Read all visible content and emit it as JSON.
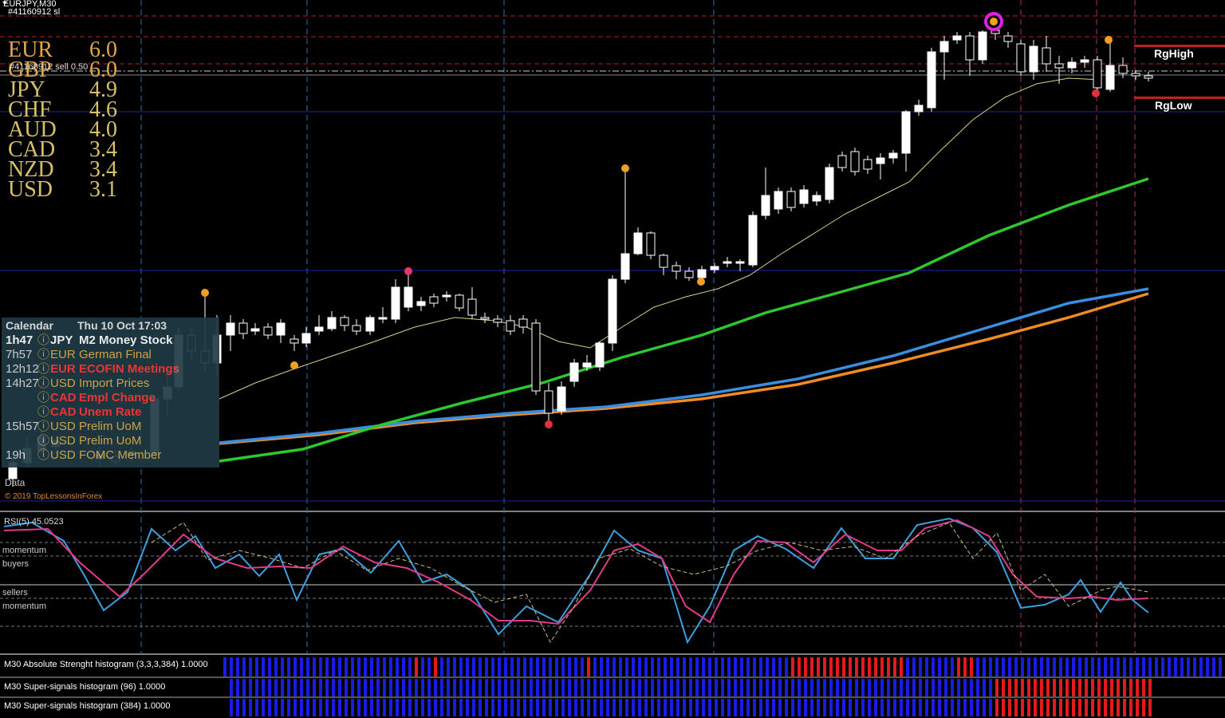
{
  "header": {
    "symbol": "EURJPY,M30",
    "account_line": "#41160912 sl"
  },
  "order_label": "#41160912 sell 0.50",
  "currency_strength": [
    {
      "currency": "EUR",
      "value": "6.0"
    },
    {
      "currency": "GBP",
      "value": "6.0"
    },
    {
      "currency": "JPY",
      "value": "4.9"
    },
    {
      "currency": "CHF",
      "value": "4.6"
    },
    {
      "currency": "AUD",
      "value": "4.0"
    },
    {
      "currency": "CAD",
      "value": "3.4"
    },
    {
      "currency": "NZD",
      "value": "3.4"
    },
    {
      "currency": "USD",
      "value": "3.1"
    }
  ],
  "calendar": {
    "title": "Calendar",
    "date": "Thu 10 Oct 17:03",
    "events": [
      {
        "time": "1h47",
        "currency": "JPY",
        "name": "M2 Money Stock",
        "impact": "low"
      },
      {
        "time": "7h57",
        "currency": "EUR",
        "name": "German Final",
        "impact": "low"
      },
      {
        "time": "12h12",
        "currency": "EUR",
        "name": "ECOFIN Meetings",
        "impact": "high"
      },
      {
        "time": "14h27",
        "currency": "USD",
        "name": "Import Prices",
        "impact": "low"
      },
      {
        "time": "",
        "currency": "CAD",
        "name": "Empl Change",
        "impact": "high"
      },
      {
        "time": "",
        "currency": "CAD",
        "name": "Unem Rate",
        "impact": "high"
      },
      {
        "time": "15h57",
        "currency": "USD",
        "name": "Prelim UoM",
        "impact": "low"
      },
      {
        "time": "",
        "currency": "USD",
        "name": "Prelim UoM",
        "impact": "low"
      },
      {
        "time": "19h",
        "currency": "USD",
        "name": "FOMC Member",
        "impact": "low"
      }
    ]
  },
  "data_label": "Data",
  "copyright": "© 2019 TopLessonsInForex",
  "range_labels": {
    "high": "RgHigh",
    "low": "RgLow"
  },
  "rsi": {
    "label": "RSI(5) 45.0523"
  },
  "rsi_zones": [
    {
      "label": "momentum"
    },
    {
      "label": "buyers"
    },
    {
      "label": "sellers"
    },
    {
      "label": "momentum"
    }
  ],
  "histograms": [
    {
      "label": "M30 Absolute Strenght histogram (3,3,3,384) 1.0000"
    },
    {
      "label": "M30 Super-signals histogram (96) 1.0000"
    },
    {
      "label": "M30 Super-signals histogram (384) 1.0000"
    }
  ],
  "colors": {
    "bull": "#ffffff",
    "bear": "#000000",
    "ema_fast": "#d8cf8a",
    "ema_green": "#2ec82e",
    "ema_blue": "#3a8ee0",
    "ema_orange": "#f08a24",
    "rsi_blue": "#3aa0e0",
    "rsi_pink": "#e03a8a",
    "rsi_yellow": "#c8c07a",
    "hist_blue": "#1a1ae6",
    "hist_red": "#e61a1a"
  }
}
